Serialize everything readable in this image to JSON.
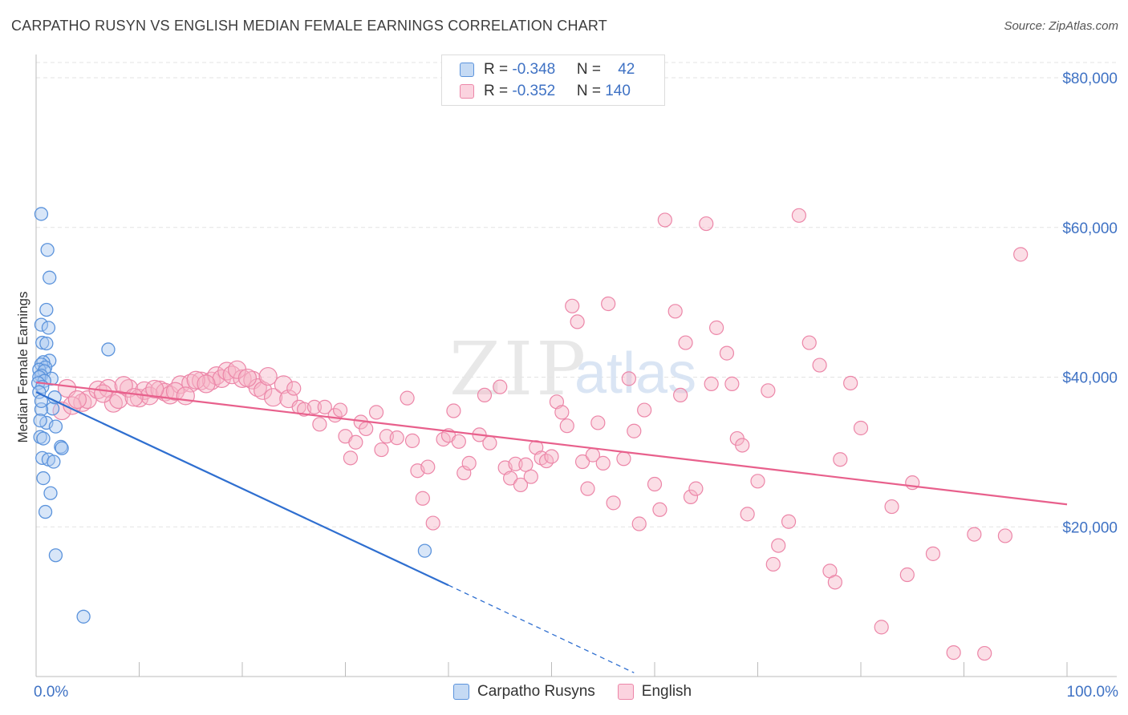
{
  "header": {
    "title": "CARPATHO RUSYN VS ENGLISH MEDIAN FEMALE EARNINGS CORRELATION CHART",
    "source": "Source: ZipAtlas.com"
  },
  "legend": {
    "rows": [
      {
        "r_label": "R = ",
        "r_value": "-0.348",
        "n_label": "N = ",
        "n_value": "42",
        "color": "#a9c8f0"
      },
      {
        "r_label": "R = ",
        "r_value": "-0.352",
        "n_label": "N = ",
        "n_value": "140",
        "color": "#f6b6c8"
      }
    ],
    "bottom": [
      "Carpatho Rusyns",
      "English"
    ]
  },
  "watermark": {
    "zip": "ZIP",
    "atlas": "atlas"
  },
  "colors": {
    "blue": "#5b93dc",
    "blue_fill": "#a9c8f0",
    "blue_line": "#2f6fd0",
    "pink": "#ec86a8",
    "pink_fill": "#f6b6c8",
    "pink_line": "#e8608c",
    "tick_text": "#3f72c4"
  },
  "chart_data": {
    "type": "scatter",
    "title": "CARPATHO RUSYN VS ENGLISH MEDIAN FEMALE EARNINGS CORRELATION CHART",
    "xlabel": "",
    "ylabel": "Median Female Earnings",
    "xlim": [
      0,
      100
    ],
    "ylim": [
      0,
      82000
    ],
    "x_tick_labels": [
      {
        "x": 0,
        "label": "0.0%"
      },
      {
        "x": 100,
        "label": "100.0%"
      }
    ],
    "y_ticks": [
      {
        "y": 20000,
        "label": "$20,000"
      },
      {
        "y": 40000,
        "label": "$40,000"
      },
      {
        "y": 60000,
        "label": "$60,000"
      },
      {
        "y": 80000,
        "label": "$80,000"
      }
    ],
    "grid": "horizontal dashed",
    "series": [
      {
        "name": "Carpatho Rusyns",
        "trend": {
          "x0": 0,
          "y0": 38000,
          "x1": 40,
          "y1": 12200,
          "dash_to_x": 58,
          "dash_to_y": 500
        },
        "points": [
          [
            0.5,
            61800
          ],
          [
            1.1,
            57000
          ],
          [
            1.3,
            53300
          ],
          [
            1.0,
            49000
          ],
          [
            0.5,
            47000
          ],
          [
            1.2,
            46600
          ],
          [
            0.6,
            44600
          ],
          [
            1.0,
            44500
          ],
          [
            7.0,
            43700
          ],
          [
            1.3,
            42200
          ],
          [
            0.7,
            42000
          ],
          [
            0.5,
            41700
          ],
          [
            0.9,
            41300
          ],
          [
            0.3,
            41000
          ],
          [
            0.8,
            40800
          ],
          [
            0.5,
            40200
          ],
          [
            0.3,
            40000
          ],
          [
            1.5,
            39800
          ],
          [
            0.8,
            39500
          ],
          [
            0.2,
            39200
          ],
          [
            0.6,
            38700
          ],
          [
            0.3,
            38000
          ],
          [
            1.6,
            35800
          ],
          [
            0.5,
            35700
          ],
          [
            1.0,
            33900
          ],
          [
            1.9,
            33400
          ],
          [
            0.4,
            32000
          ],
          [
            0.7,
            31800
          ],
          [
            2.4,
            30700
          ],
          [
            2.5,
            30500
          ],
          [
            0.6,
            29200
          ],
          [
            1.2,
            29000
          ],
          [
            1.7,
            28700
          ],
          [
            0.7,
            26500
          ],
          [
            1.4,
            24500
          ],
          [
            0.9,
            22000
          ],
          [
            1.9,
            16200
          ],
          [
            37.7,
            16800
          ],
          [
            4.6,
            8000
          ],
          [
            0.5,
            36800
          ],
          [
            1.8,
            37300
          ],
          [
            0.4,
            34200
          ]
        ]
      },
      {
        "name": "English",
        "trend": {
          "x0": 0,
          "y0": 39300,
          "x1": 100,
          "y1": 23000
        },
        "points": [
          [
            2.5,
            35500
          ],
          [
            3.0,
            38500
          ],
          [
            4.5,
            36600
          ],
          [
            5.0,
            37000
          ],
          [
            6.0,
            38300
          ],
          [
            7.0,
            38500
          ],
          [
            7.5,
            36500
          ],
          [
            8.0,
            37000
          ],
          [
            9.0,
            38500
          ],
          [
            10.0,
            37200
          ],
          [
            10.5,
            38200
          ],
          [
            11.0,
            37500
          ],
          [
            12.0,
            38300
          ],
          [
            12.5,
            38000
          ],
          [
            13.0,
            37600
          ],
          [
            14.0,
            39000
          ],
          [
            15.0,
            39200
          ],
          [
            16.0,
            39500
          ],
          [
            17.0,
            39500
          ],
          [
            17.5,
            40200
          ],
          [
            18.0,
            39800
          ],
          [
            18.5,
            40800
          ],
          [
            19.0,
            40300
          ],
          [
            20.0,
            39800
          ],
          [
            21.0,
            39600
          ],
          [
            21.5,
            38600
          ],
          [
            22.0,
            38200
          ],
          [
            23.0,
            37300
          ],
          [
            24.0,
            39000
          ],
          [
            24.5,
            37100
          ],
          [
            25.0,
            38500
          ],
          [
            25.5,
            36000
          ],
          [
            26.0,
            35700
          ],
          [
            27.0,
            36000
          ],
          [
            27.5,
            33700
          ],
          [
            28.0,
            36000
          ],
          [
            29.0,
            34900
          ],
          [
            29.5,
            35600
          ],
          [
            30.0,
            32100
          ],
          [
            30.5,
            29200
          ],
          [
            31.0,
            31300
          ],
          [
            31.5,
            34000
          ],
          [
            32.0,
            33100
          ],
          [
            33.0,
            35300
          ],
          [
            33.5,
            30300
          ],
          [
            34.0,
            32100
          ],
          [
            35.0,
            31900
          ],
          [
            36.0,
            37200
          ],
          [
            36.5,
            31500
          ],
          [
            37.0,
            27500
          ],
          [
            37.5,
            23800
          ],
          [
            38.0,
            28000
          ],
          [
            38.5,
            20500
          ],
          [
            39.5,
            31700
          ],
          [
            40.0,
            32200
          ],
          [
            40.5,
            35500
          ],
          [
            41.0,
            31400
          ],
          [
            41.5,
            27200
          ],
          [
            42.0,
            28500
          ],
          [
            43.0,
            32300
          ],
          [
            43.5,
            37600
          ],
          [
            44.0,
            31200
          ],
          [
            45.0,
            38700
          ],
          [
            45.5,
            27900
          ],
          [
            46.0,
            26500
          ],
          [
            46.5,
            28400
          ],
          [
            47.0,
            25600
          ],
          [
            47.5,
            28300
          ],
          [
            48.0,
            26700
          ],
          [
            48.5,
            30600
          ],
          [
            49.0,
            29200
          ],
          [
            49.5,
            28800
          ],
          [
            50.0,
            29400
          ],
          [
            50.5,
            36700
          ],
          [
            51.0,
            35300
          ],
          [
            51.5,
            33500
          ],
          [
            52.0,
            49500
          ],
          [
            52.5,
            47400
          ],
          [
            53.0,
            28700
          ],
          [
            53.5,
            25100
          ],
          [
            54.0,
            29600
          ],
          [
            54.5,
            33900
          ],
          [
            55.0,
            28500
          ],
          [
            55.5,
            49800
          ],
          [
            56.0,
            23200
          ],
          [
            57.0,
            29100
          ],
          [
            57.5,
            39800
          ],
          [
            58.0,
            32800
          ],
          [
            58.5,
            20400
          ],
          [
            59.0,
            35600
          ],
          [
            60.0,
            25700
          ],
          [
            60.5,
            22300
          ],
          [
            61.0,
            61000
          ],
          [
            62.0,
            48800
          ],
          [
            62.5,
            37600
          ],
          [
            63.0,
            44600
          ],
          [
            63.5,
            24000
          ],
          [
            64.0,
            25100
          ],
          [
            65.0,
            60500
          ],
          [
            65.5,
            39100
          ],
          [
            66.0,
            46600
          ],
          [
            67.0,
            43200
          ],
          [
            67.5,
            39100
          ],
          [
            68.0,
            31800
          ],
          [
            68.5,
            30900
          ],
          [
            69.0,
            21700
          ],
          [
            70.0,
            26100
          ],
          [
            71.0,
            38200
          ],
          [
            71.5,
            15000
          ],
          [
            72.0,
            17500
          ],
          [
            73.0,
            20700
          ],
          [
            74.0,
            61600
          ],
          [
            75.0,
            44600
          ],
          [
            76.0,
            41600
          ],
          [
            77.0,
            14100
          ],
          [
            77.5,
            12600
          ],
          [
            78.0,
            29000
          ],
          [
            79.0,
            39200
          ],
          [
            80.0,
            33200
          ],
          [
            82.0,
            6600
          ],
          [
            83.0,
            22700
          ],
          [
            84.5,
            13600
          ],
          [
            85.0,
            25900
          ],
          [
            87.0,
            16400
          ],
          [
            89.0,
            3200
          ],
          [
            91.0,
            19000
          ],
          [
            92.0,
            3100
          ],
          [
            94.0,
            18800
          ],
          [
            95.5,
            56400
          ],
          [
            3.5,
            36200
          ],
          [
            4.0,
            37000
          ],
          [
            6.5,
            37800
          ],
          [
            8.5,
            38900
          ],
          [
            9.5,
            37300
          ],
          [
            11.5,
            38400
          ],
          [
            13.5,
            38100
          ],
          [
            14.5,
            37500
          ],
          [
            15.5,
            39600
          ],
          [
            16.5,
            39100
          ],
          [
            19.5,
            41000
          ],
          [
            20.5,
            39900
          ],
          [
            22.5,
            40100
          ]
        ]
      }
    ]
  }
}
